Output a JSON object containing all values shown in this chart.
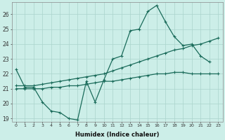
{
  "title": "",
  "xlabel": "Humidex (Indice chaleur)",
  "bg_color": "#cceee8",
  "line_color": "#1a6b5a",
  "grid_color": "#aad4cc",
  "xlim": [
    -0.5,
    23.5
  ],
  "ylim": [
    18.8,
    26.8
  ],
  "yticks": [
    19,
    20,
    21,
    22,
    23,
    24,
    25,
    26
  ],
  "xticks": [
    0,
    1,
    2,
    3,
    4,
    5,
    6,
    7,
    8,
    9,
    10,
    11,
    12,
    13,
    14,
    15,
    16,
    17,
    18,
    19,
    20,
    21,
    22,
    23
  ],
  "line1_x": [
    0,
    1,
    2,
    3,
    4,
    5,
    6,
    7,
    8,
    9,
    10,
    11,
    12,
    13,
    14,
    15,
    16,
    17,
    18,
    19,
    20,
    21,
    22
  ],
  "line1_y": [
    22.3,
    21.1,
    21.1,
    20.1,
    19.5,
    19.4,
    19.0,
    18.9,
    21.5,
    20.1,
    21.6,
    23.0,
    23.2,
    24.9,
    25.0,
    26.2,
    26.6,
    25.5,
    24.5,
    23.9,
    24.0,
    23.2,
    22.8
  ],
  "line2_x": [
    0,
    1,
    2,
    3,
    4,
    5,
    6,
    7,
    8,
    9,
    10,
    11,
    12,
    13,
    14,
    15,
    16,
    17,
    18,
    19,
    20,
    21,
    22,
    23
  ],
  "line2_y": [
    21.2,
    21.2,
    21.2,
    21.3,
    21.4,
    21.5,
    21.6,
    21.7,
    21.8,
    21.9,
    22.0,
    22.2,
    22.4,
    22.6,
    22.8,
    23.0,
    23.2,
    23.4,
    23.6,
    23.7,
    23.9,
    24.0,
    24.2,
    24.4
  ],
  "line3_x": [
    0,
    1,
    2,
    3,
    4,
    5,
    6,
    7,
    8,
    9,
    10,
    11,
    12,
    13,
    14,
    15,
    16,
    17,
    18,
    19,
    20,
    21,
    22,
    23
  ],
  "line3_y": [
    21.0,
    21.0,
    21.0,
    21.0,
    21.1,
    21.1,
    21.2,
    21.2,
    21.3,
    21.4,
    21.5,
    21.5,
    21.6,
    21.7,
    21.8,
    21.9,
    22.0,
    22.0,
    22.1,
    22.1,
    22.0,
    22.0,
    22.0,
    22.0
  ]
}
